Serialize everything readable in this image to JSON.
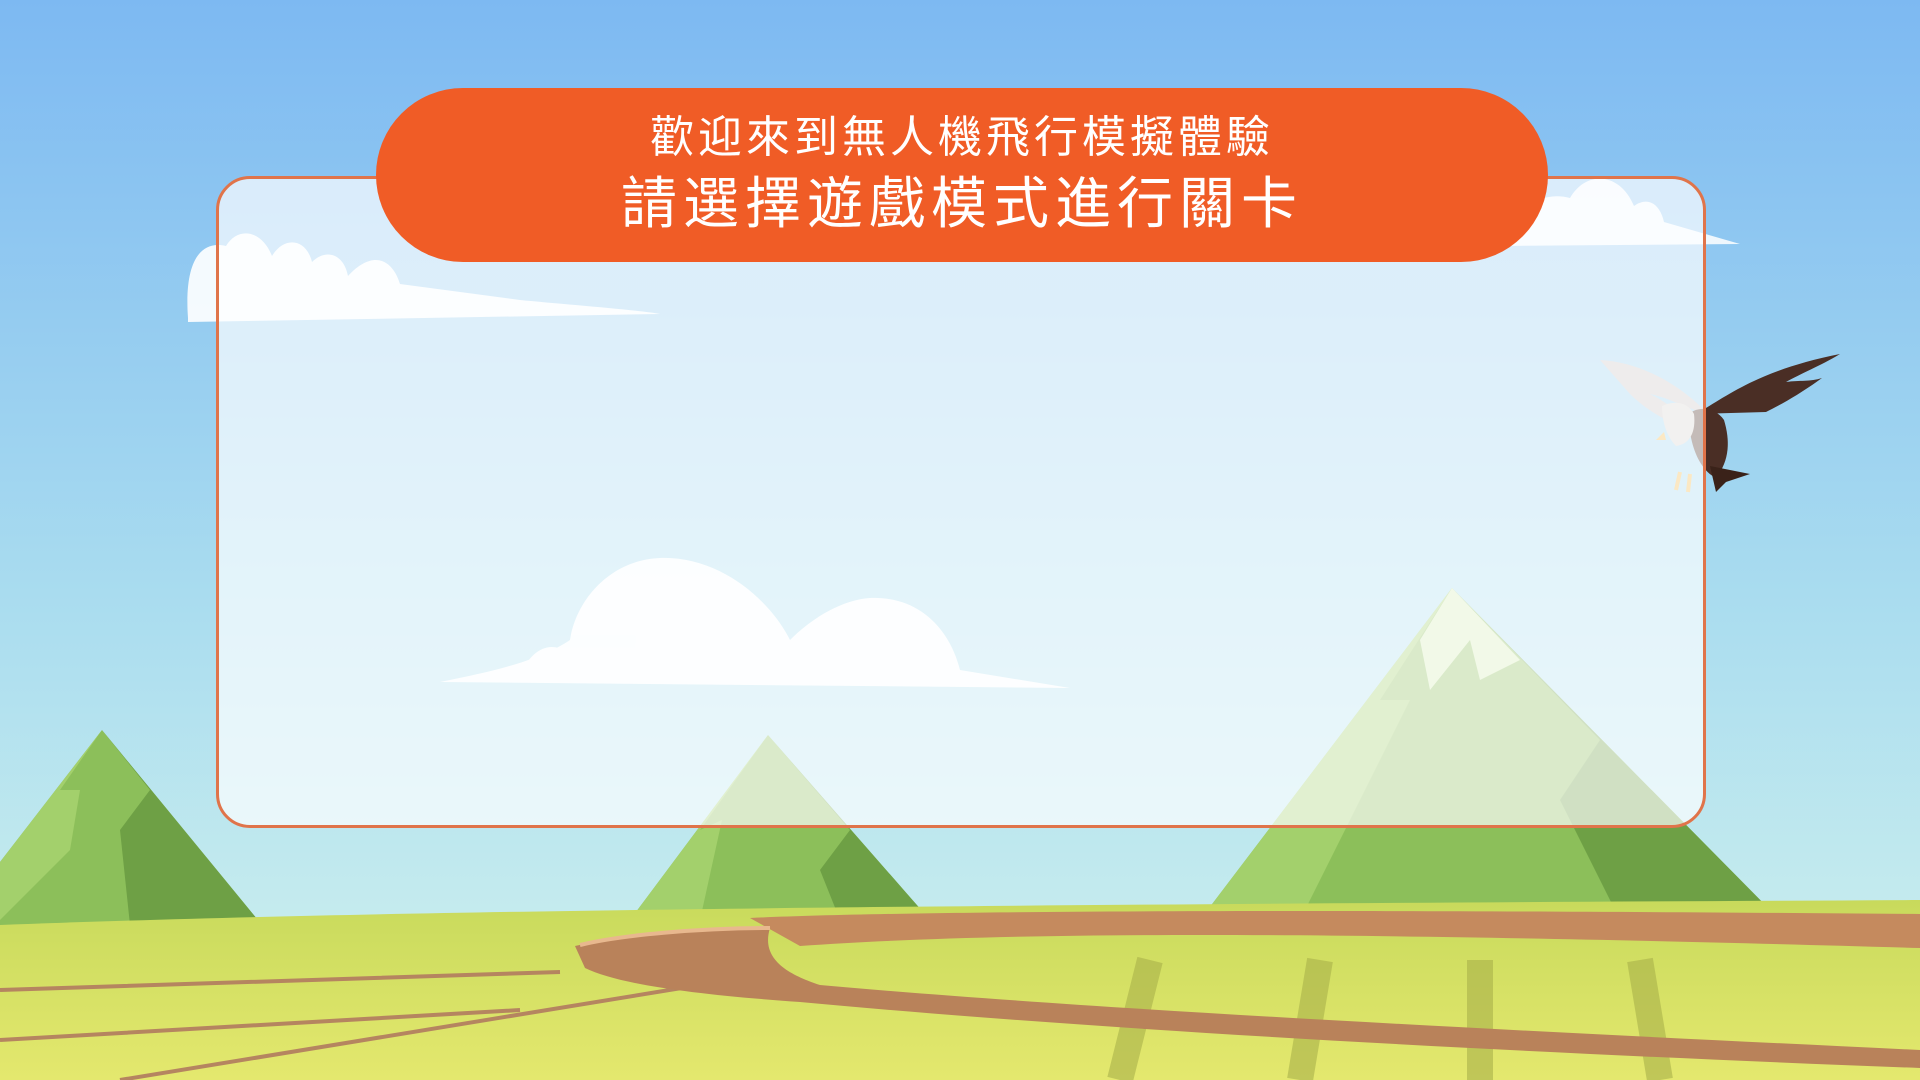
{
  "banner": {
    "line1": "歡迎來到無人機飛行模擬體驗",
    "line2": "請選擇遊戲模式進行關卡"
  },
  "colors": {
    "sky_top": "#7db9f2",
    "sky_bottom": "#d3f3ee",
    "banner": "#f05c26",
    "panel_border": "#e0744a",
    "grass": "#dfe36a",
    "mountain_green": "#8cbf5a",
    "road": "#c58a5e"
  },
  "icons": {
    "bird": "eagle-icon"
  }
}
